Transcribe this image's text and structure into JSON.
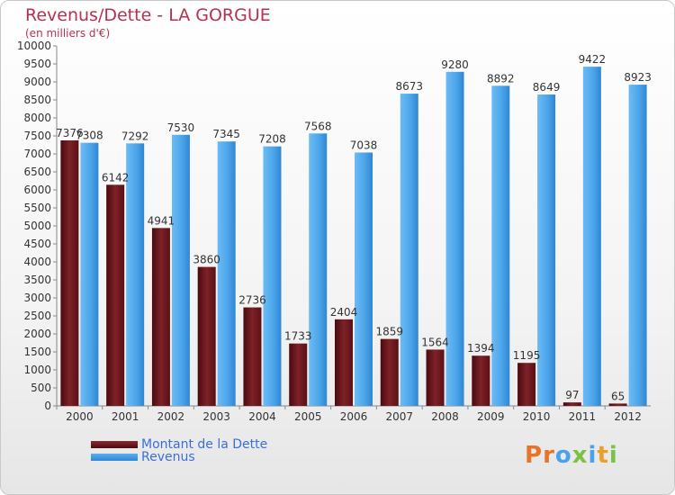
{
  "title": "Revenus/Dette - LA GORGUE",
  "subtitle": "(en milliers d'€)",
  "legend": {
    "debt_label": "Montant de la Dette",
    "revenue_label": "Revenus"
  },
  "logo": {
    "text": "Proxiti"
  },
  "colors": {
    "debt": "#6b1a1f",
    "revenue": "#4aa3e8",
    "title": "#b5324f",
    "legend_text": "#3a6fd8"
  },
  "chart_data": {
    "type": "bar",
    "categories": [
      "2000",
      "2001",
      "2002",
      "2003",
      "2004",
      "2005",
      "2006",
      "2007",
      "2008",
      "2009",
      "2010",
      "2011",
      "2012"
    ],
    "series": [
      {
        "name": "Montant de la Dette",
        "values": [
          7376,
          6142,
          4941,
          3860,
          2736,
          1733,
          2404,
          1859,
          1564,
          1394,
          1195,
          97,
          65
        ],
        "labels": [
          "7376",
          "6142",
          "4941",
          "3860",
          "2736",
          "1733",
          "2404",
          "1859",
          "1564",
          "1394",
          "1195",
          "97",
          "65"
        ]
      },
      {
        "name": "Revenus",
        "values": [
          7308,
          7292,
          7530,
          7345,
          7208,
          7568,
          7038,
          8673,
          9280,
          8892,
          8649,
          9422,
          8923
        ],
        "labels": [
          "7308",
          "7292",
          "7530",
          "7345",
          "7208",
          "7568",
          "7038",
          "8673",
          "9280",
          "8892",
          "8649",
          "9422",
          "8923"
        ]
      }
    ],
    "ylim": [
      0,
      10000
    ],
    "ytick_step": 500,
    "grid": false,
    "legend_position": "bottom-left"
  }
}
